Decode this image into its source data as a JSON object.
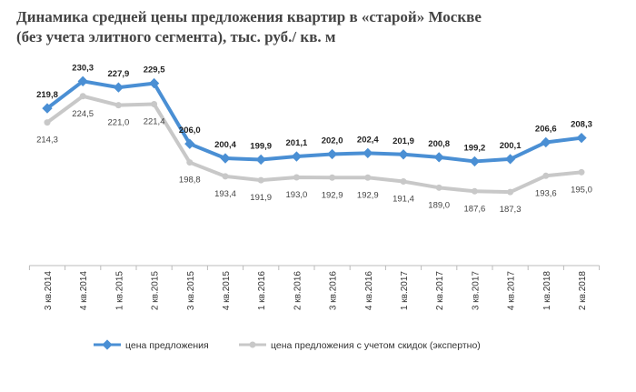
{
  "chart_data": {
    "type": "line",
    "title": "Динамика средней цены предложения квартир в «старой» Москве (без учета элитного сегмента), тыс. руб./ кв. м",
    "categories": [
      "3 кв.2014",
      "4 кв.2014",
      "1 кв.2015",
      "2 кв.2015",
      "3 кв.2015",
      "4 кв.2015",
      "1 кв.2016",
      "2 кв.2016",
      "3 кв.2016",
      "4 кв.2016",
      "1 кв.2017",
      "2 кв.2017",
      "3 кв.2017",
      "4 кв.2017",
      "1 кв.2018",
      "2 кв.2018"
    ],
    "series": [
      {
        "name": "цена предложения",
        "color": "#4a8fd4",
        "values": [
          219.8,
          230.3,
          227.9,
          229.5,
          206.0,
          200.4,
          199.9,
          201.1,
          202.0,
          202.4,
          201.9,
          200.8,
          199.2,
          200.1,
          206.6,
          208.3
        ],
        "labels": [
          "219,8",
          "230,3",
          "227,9",
          "229,5",
          "206,0",
          "200,4",
          "199,9",
          "201,1",
          "202,0",
          "202,4",
          "201,9",
          "200,8",
          "199,2",
          "200,1",
          "206,6",
          "208,3"
        ]
      },
      {
        "name": "цена предложения  с учетом скидок (экспертно)",
        "color": "#c8c8c8",
        "values": [
          214.3,
          224.5,
          221.0,
          221.4,
          198.8,
          193.4,
          191.9,
          193.0,
          192.9,
          192.9,
          191.4,
          189.0,
          187.6,
          187.3,
          193.6,
          195.0
        ],
        "labels": [
          "214,3",
          "224,5",
          "221,0",
          "221,4",
          "198,8",
          "193,4",
          "191,9",
          "193,0",
          "192,9",
          "192,9",
          "191,4",
          "189,0",
          "187,6",
          "187,3",
          "193,6",
          "195,0"
        ]
      }
    ],
    "ylim": [
      175,
      235
    ],
    "grid": false,
    "legend_position": "bottom"
  }
}
